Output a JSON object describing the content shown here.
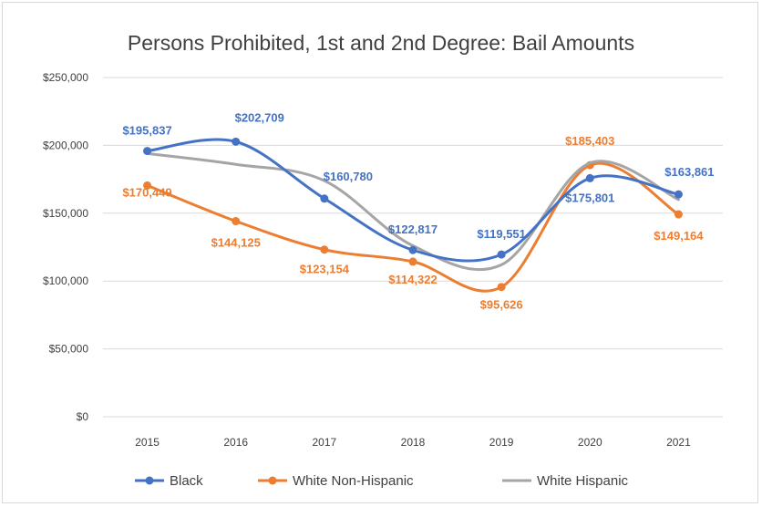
{
  "chart_data": {
    "type": "line",
    "title": "Persons Prohibited, 1st and 2nd Degree: Bail Amounts",
    "xlabel": "",
    "ylabel": "",
    "categories": [
      "2015",
      "2016",
      "2017",
      "2018",
      "2019",
      "2020",
      "2021"
    ],
    "ylim": [
      0,
      250000
    ],
    "yticks": [
      0,
      50000,
      100000,
      150000,
      200000,
      250000
    ],
    "ytick_labels": [
      "$0",
      "$50,000",
      "$100,000",
      "$150,000",
      "$200,000",
      "$250,000"
    ],
    "grid": true,
    "smooth": true,
    "legend_position": "bottom",
    "series": [
      {
        "name": "Black",
        "color": "#4472c4",
        "values": [
          195837,
          202709,
          160780,
          122817,
          119551,
          175801,
          163861
        ],
        "labels": [
          "$195,837",
          "$202,709",
          "$160,780",
          "$122,817",
          "$119,551",
          "$175,801",
          "$163,861"
        ]
      },
      {
        "name": "White Non-Hispanic",
        "color": "#ed7d31",
        "values": [
          170449,
          144125,
          123154,
          114322,
          95626,
          185403,
          149164
        ],
        "labels": [
          "$170,449",
          "$144,125",
          "$123,154",
          "$114,322",
          "$95,626",
          "$185,403",
          "$149,164"
        ]
      },
      {
        "name": "White Hispanic",
        "color": "#a5a5a5",
        "values": [
          194000,
          186000,
          174000,
          126000,
          112000,
          187000,
          160000
        ]
      }
    ]
  }
}
